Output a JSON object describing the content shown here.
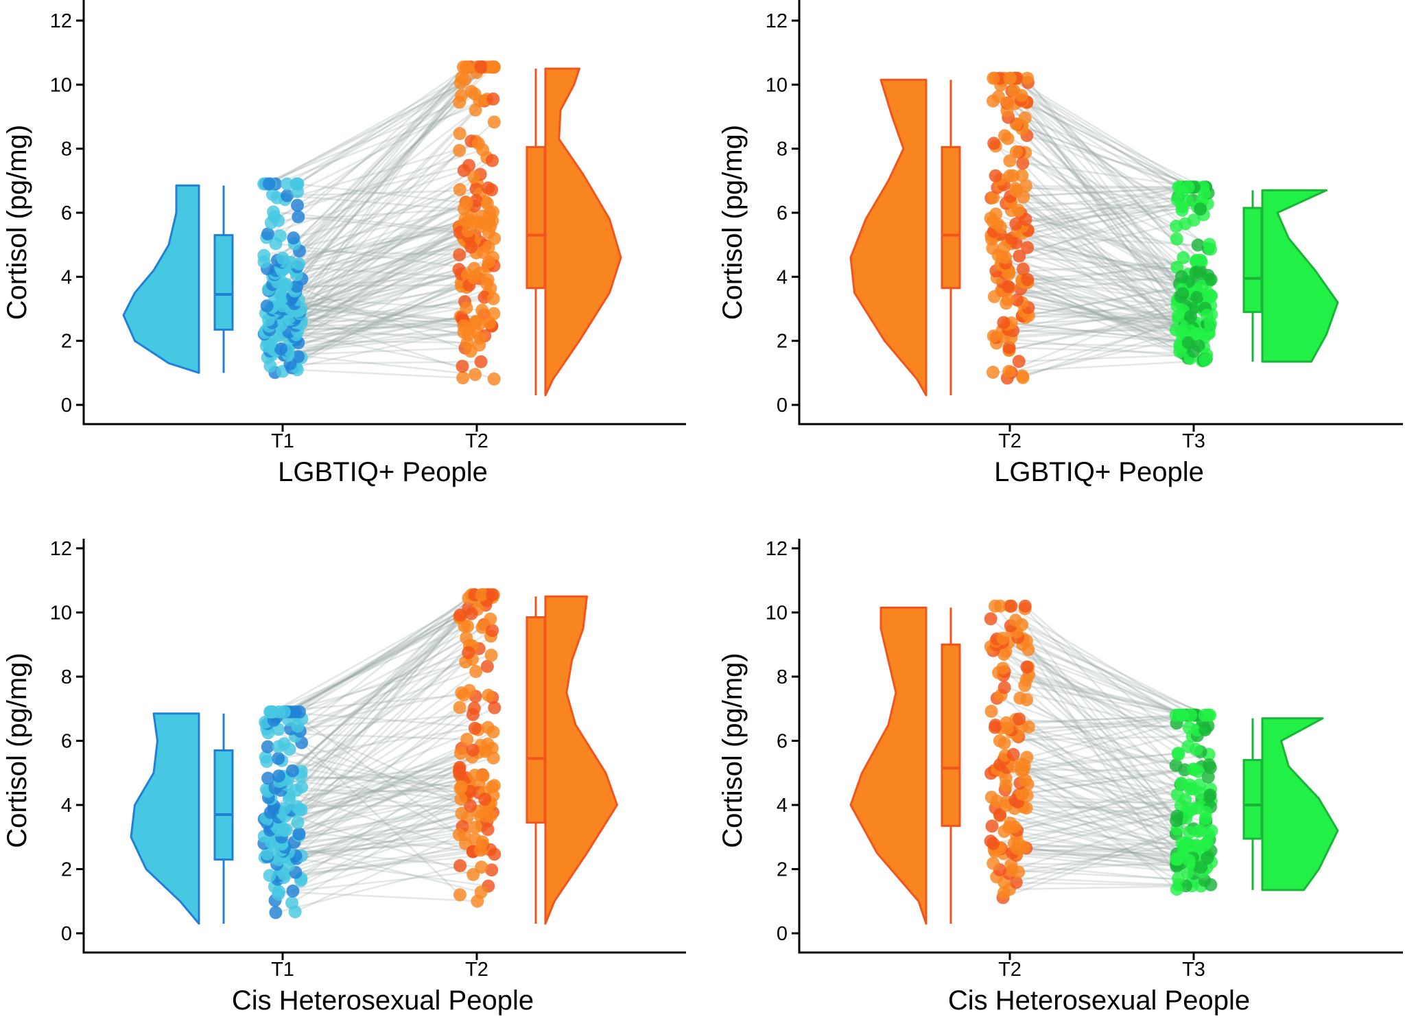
{
  "chart_data": [
    {
      "type": "raincloud",
      "xlabel": "LGBTIQ+ People",
      "ylabel": "Cortisol (pg/mg)",
      "ylim": [
        0,
        12
      ],
      "yticks": [
        0,
        2,
        4,
        6,
        8,
        10,
        12
      ],
      "grid": false,
      "seed": 11,
      "n_pairs": 150,
      "groups": [
        {
          "label": "T1",
          "fill": "#47c8e2",
          "stroke": "#2080d6",
          "side": "left",
          "min": 1.0,
          "q1": 2.35,
          "median": 3.45,
          "q3": 5.3,
          "max": 6.85,
          "points_min": 1.0,
          "points_max": 6.9,
          "cap": 6.9,
          "density": [
            [
              1.0,
              0.0
            ],
            [
              1.3,
              0.4
            ],
            [
              2.0,
              0.85
            ],
            [
              2.8,
              1.0
            ],
            [
              3.5,
              0.85
            ],
            [
              4.2,
              0.6
            ],
            [
              5.0,
              0.4
            ],
            [
              6.0,
              0.3
            ],
            [
              6.85,
              0.3
            ]
          ]
        },
        {
          "label": "T2",
          "fill": "#f98520",
          "stroke": "#f2541b",
          "side": "right",
          "min": 0.3,
          "q1": 3.65,
          "median": 5.3,
          "q3": 8.05,
          "max": 10.5,
          "points_min": 0.3,
          "points_max": 10.55,
          "cap": 10.55,
          "density": [
            [
              0.3,
              0.0
            ],
            [
              0.8,
              0.1
            ],
            [
              2.0,
              0.45
            ],
            [
              3.5,
              0.85
            ],
            [
              4.6,
              1.0
            ],
            [
              5.8,
              0.85
            ],
            [
              7.2,
              0.5
            ],
            [
              8.3,
              0.18
            ],
            [
              9.2,
              0.2
            ],
            [
              10.0,
              0.38
            ],
            [
              10.5,
              0.45
            ]
          ]
        }
      ]
    },
    {
      "type": "raincloud",
      "xlabel": "LGBTIQ+ People",
      "ylabel": "Cortisol (pg/mg)",
      "ylim": [
        0,
        12
      ],
      "yticks": [
        0,
        2,
        4,
        6,
        8,
        10,
        12
      ],
      "grid": false,
      "seed": 23,
      "n_pairs": 150,
      "groups": [
        {
          "label": "T2",
          "fill": "#f98520",
          "stroke": "#f2541b",
          "side": "left",
          "min": 0.3,
          "q1": 3.65,
          "median": 5.3,
          "q3": 8.05,
          "max": 10.15,
          "points_min": 0.3,
          "points_max": 10.2,
          "cap": 10.2,
          "density": [
            [
              0.3,
              0.0
            ],
            [
              0.8,
              0.12
            ],
            [
              2.0,
              0.55
            ],
            [
              3.5,
              0.95
            ],
            [
              4.6,
              1.0
            ],
            [
              5.8,
              0.8
            ],
            [
              7.0,
              0.5
            ],
            [
              8.0,
              0.3
            ],
            [
              9.0,
              0.45
            ],
            [
              10.15,
              0.6
            ]
          ]
        },
        {
          "label": "T3",
          "fill": "#22f046",
          "stroke": "#19b438",
          "side": "right",
          "min": 1.35,
          "q1": 2.9,
          "median": 3.95,
          "q3": 6.15,
          "max": 6.7,
          "points_min": 1.3,
          "points_max": 6.8,
          "cap": 6.8,
          "density": [
            [
              1.35,
              0.65
            ],
            [
              2.2,
              0.85
            ],
            [
              3.2,
              1.0
            ],
            [
              4.2,
              0.7
            ],
            [
              5.2,
              0.35
            ],
            [
              6.0,
              0.2
            ],
            [
              6.7,
              0.85
            ]
          ]
        }
      ]
    },
    {
      "type": "raincloud",
      "xlabel": "Cis Heterosexual People",
      "ylabel": "Cortisol (pg/mg)",
      "ylim": [
        0,
        12
      ],
      "yticks": [
        0,
        2,
        4,
        6,
        8,
        10,
        12
      ],
      "grid": false,
      "seed": 37,
      "n_pairs": 130,
      "groups": [
        {
          "label": "T1",
          "fill": "#47c8e2",
          "stroke": "#2080d6",
          "side": "left",
          "min": 0.3,
          "q1": 2.3,
          "median": 3.7,
          "q3": 5.7,
          "max": 6.85,
          "points_min": 0.3,
          "points_max": 6.9,
          "cap": 6.9,
          "density": [
            [
              0.3,
              0.0
            ],
            [
              1.0,
              0.25
            ],
            [
              2.0,
              0.7
            ],
            [
              3.0,
              0.9
            ],
            [
              4.0,
              0.85
            ],
            [
              5.0,
              0.6
            ],
            [
              6.0,
              0.55
            ],
            [
              6.85,
              0.6
            ]
          ]
        },
        {
          "label": "T2",
          "fill": "#f98520",
          "stroke": "#f2541b",
          "side": "right",
          "min": 0.3,
          "q1": 3.45,
          "median": 5.45,
          "q3": 9.85,
          "max": 10.5,
          "points_min": 0.3,
          "points_max": 10.55,
          "cap": 10.55,
          "density": [
            [
              0.3,
              0.0
            ],
            [
              1.0,
              0.12
            ],
            [
              2.5,
              0.55
            ],
            [
              4.0,
              0.95
            ],
            [
              5.0,
              0.8
            ],
            [
              6.5,
              0.4
            ],
            [
              7.5,
              0.28
            ],
            [
              8.5,
              0.35
            ],
            [
              9.5,
              0.5
            ],
            [
              10.5,
              0.55
            ]
          ]
        }
      ]
    },
    {
      "type": "raincloud",
      "xlabel": "Cis Heterosexual People",
      "ylabel": "Cortisol (pg/mg)",
      "ylim": [
        0,
        12
      ],
      "yticks": [
        0,
        2,
        4,
        6,
        8,
        10,
        12
      ],
      "grid": false,
      "seed": 53,
      "n_pairs": 130,
      "groups": [
        {
          "label": "T2",
          "fill": "#f98520",
          "stroke": "#f2541b",
          "side": "left",
          "min": 0.3,
          "q1": 3.35,
          "median": 5.15,
          "q3": 9.0,
          "max": 10.15,
          "points_min": 0.3,
          "points_max": 10.2,
          "cap": 10.2,
          "density": [
            [
              0.3,
              0.0
            ],
            [
              1.0,
              0.1
            ],
            [
              2.5,
              0.65
            ],
            [
              4.0,
              1.0
            ],
            [
              5.0,
              0.85
            ],
            [
              6.5,
              0.5
            ],
            [
              7.5,
              0.4
            ],
            [
              8.5,
              0.5
            ],
            [
              9.5,
              0.6
            ],
            [
              10.15,
              0.6
            ]
          ]
        },
        {
          "label": "T3",
          "fill": "#22f046",
          "stroke": "#19b438",
          "side": "right",
          "min": 1.35,
          "q1": 2.95,
          "median": 4.0,
          "q3": 5.4,
          "max": 6.7,
          "points_min": 1.3,
          "points_max": 6.8,
          "cap": 6.8,
          "density": [
            [
              1.35,
              0.55
            ],
            [
              2.0,
              0.75
            ],
            [
              3.2,
              1.0
            ],
            [
              4.2,
              0.75
            ],
            [
              5.2,
              0.35
            ],
            [
              6.0,
              0.25
            ],
            [
              6.7,
              0.8
            ]
          ]
        }
      ]
    }
  ]
}
